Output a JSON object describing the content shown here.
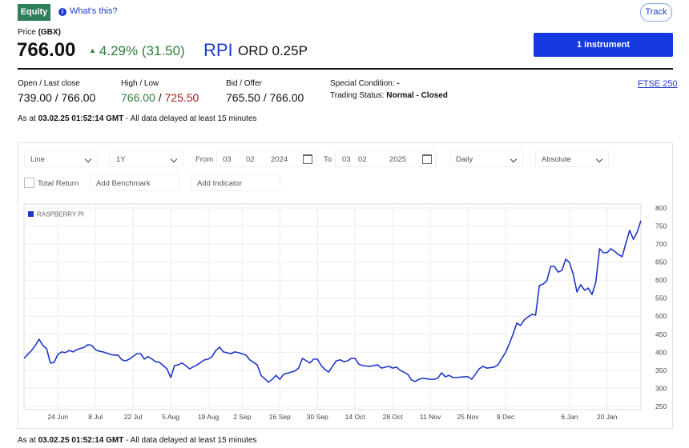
{
  "header": {
    "badge": "Equity",
    "help": "What's this?",
    "track": "Track"
  },
  "quote": {
    "price_label": "Price",
    "currency": "(GBX)",
    "price": "766.00",
    "change": "4.29% (31.50)",
    "symbol": "RPI",
    "description": "ORD 0.25P",
    "button": "1 instrument"
  },
  "stats": {
    "open_label": "Open / Last close",
    "open_value": "739.00 / 766.00",
    "range_label": "High / Low",
    "high": "766.00",
    "separator": " / ",
    "low": "725.50",
    "bid_label": "Bid / Offer",
    "bid_value": "765.50 / 766.00",
    "special_label": "Special Condition:",
    "special_value": "-",
    "status_label": "Trading Status:",
    "status_value": "Normal - Closed",
    "index_link": "FTSE 250"
  },
  "timestamp": {
    "prefix": "As at",
    "time": "03.02.25 01:52:14 GMT",
    "note": "- All data delayed at least 15 minutes"
  },
  "controls": {
    "chart_type": "Line",
    "period": "1Y",
    "from_label": "From",
    "from": [
      "03",
      "02",
      "2024"
    ],
    "to_label": "To",
    "to": [
      "03",
      "02",
      "2025"
    ],
    "interval": "Daily",
    "mode": "Absolute",
    "total_return": "Total Return",
    "benchmark": "Add Benchmark",
    "indicator": "Add Indicator"
  },
  "chart_data": {
    "type": "line",
    "series": [
      {
        "name": "RASPBERRY PI",
        "color": "#1f36c7",
        "x": [
          0,
          2,
          3,
          4,
          5,
          6,
          7,
          8,
          9,
          10,
          11,
          12,
          13,
          14,
          16,
          17,
          18,
          19,
          20,
          21,
          23,
          24,
          25,
          26,
          27,
          28,
          30,
          31,
          32,
          33,
          34,
          35,
          36,
          37,
          38,
          39,
          40,
          41,
          42,
          43,
          44,
          46,
          47,
          48,
          49,
          50,
          51,
          52,
          53,
          55,
          56,
          57,
          59,
          60,
          62,
          63,
          65,
          66,
          67,
          68,
          69,
          71,
          72,
          73,
          74,
          76,
          77,
          78,
          79,
          80,
          81,
          82,
          83,
          84,
          85,
          86,
          87,
          88,
          89,
          90,
          92,
          93,
          94,
          95,
          97,
          98,
          99,
          100,
          102,
          103,
          104,
          105,
          106,
          108,
          109,
          110,
          111,
          112,
          113,
          114,
          115,
          117,
          118,
          119,
          120,
          121,
          122,
          123,
          125,
          126,
          127,
          128,
          129,
          130,
          131,
          132,
          133,
          134,
          135,
          136,
          137,
          138,
          139,
          140,
          141,
          142,
          143,
          144,
          145,
          146,
          147,
          148,
          149,
          150,
          151,
          152,
          153,
          154,
          155,
          156,
          157,
          158,
          159,
          160,
          161,
          162,
          163,
          164
        ],
        "values": [
          383,
          405,
          419,
          436,
          419,
          410,
          370,
          372,
          394,
          401,
          399,
          405,
          401,
          407,
          414,
          421,
          419,
          407,
          403,
          401,
          394,
          392,
          392,
          379,
          376,
          381,
          396,
          396,
          381,
          388,
          381,
          374,
          372,
          363,
          354,
          330,
          363,
          365,
          370,
          363,
          354,
          365,
          372,
          379,
          381,
          388,
          405,
          414,
          401,
          396,
          401,
          399,
          392,
          379,
          365,
          336,
          317,
          325,
          336,
          325,
          339,
          345,
          348,
          356,
          383,
          370,
          381,
          381,
          363,
          352,
          345,
          361,
          376,
          379,
          374,
          376,
          383,
          383,
          367,
          363,
          361,
          363,
          365,
          356,
          361,
          356,
          359,
          350,
          339,
          323,
          319,
          325,
          328,
          325,
          325,
          328,
          343,
          332,
          336,
          330,
          330,
          332,
          332,
          325,
          339,
          354,
          361,
          356,
          359,
          365,
          383,
          399,
          423,
          450,
          481,
          474,
          490,
          498,
          505,
          503,
          585,
          589,
          598,
          638,
          638,
          622,
          627,
          658,
          649,
          616,
          567,
          587,
          572,
          578,
          560,
          594,
          687,
          676,
          676,
          687,
          680,
          671,
          665,
          702,
          738,
          713,
          733,
          765
        ]
      }
    ],
    "xlim": [
      0,
      164
    ],
    "xticks": [
      {
        "value": 9,
        "label": "24 Jun"
      },
      {
        "value": 19,
        "label": "8 Jul"
      },
      {
        "value": 29,
        "label": "22 Jul"
      },
      {
        "value": 39,
        "label": "5 Aug"
      },
      {
        "value": 49,
        "label": "19 Aug"
      },
      {
        "value": 58,
        "label": "2 Sep"
      },
      {
        "value": 68,
        "label": "16 Sep"
      },
      {
        "value": 78,
        "label": "30 Sep"
      },
      {
        "value": 88,
        "label": "14 Oct"
      },
      {
        "value": 98,
        "label": "28 Oct"
      },
      {
        "value": 108,
        "label": "11 Nov"
      },
      {
        "value": 118,
        "label": "25 Nov"
      },
      {
        "value": 128,
        "label": "9 Dec"
      },
      {
        "value": 145,
        "label": "6 Jan"
      },
      {
        "value": 155,
        "label": "20 Jan"
      }
    ],
    "ylim": [
      241,
      811
    ],
    "yticks": [
      250,
      300,
      350,
      400,
      450,
      500,
      550,
      600,
      650,
      700,
      750,
      800
    ],
    "grid": true,
    "legend": "top-left"
  }
}
